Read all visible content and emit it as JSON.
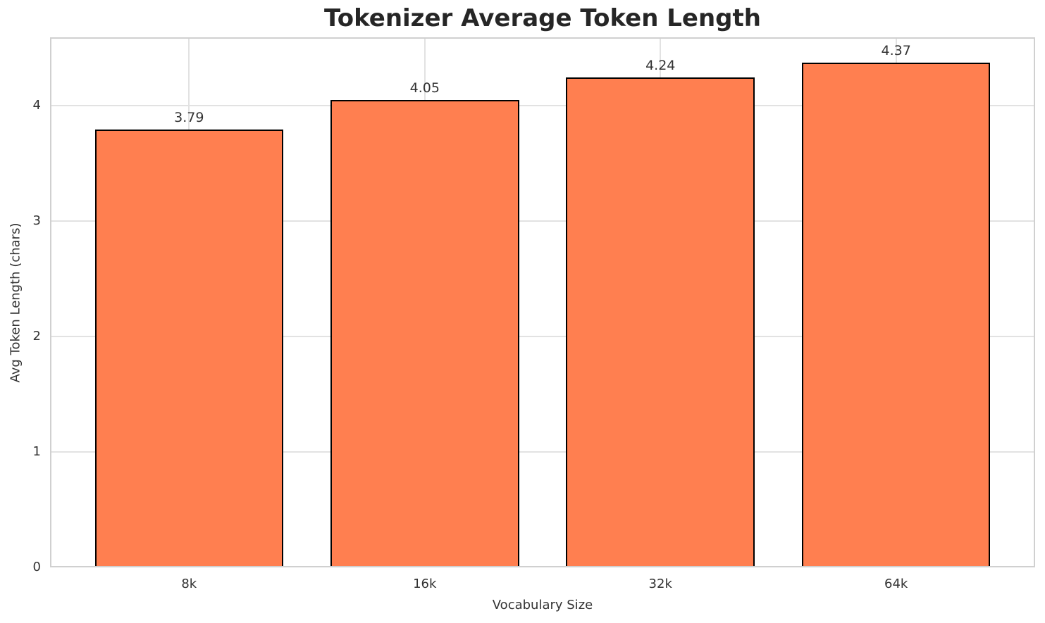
{
  "chart_data": {
    "type": "bar",
    "title": "Tokenizer Average Token Length",
    "xlabel": "Vocabulary Size",
    "ylabel": "Avg Token Length (chars)",
    "categories": [
      "8k",
      "16k",
      "32k",
      "64k"
    ],
    "values": [
      3.79,
      4.05,
      4.24,
      4.37
    ],
    "value_labels": [
      "3.79",
      "4.05",
      "4.24",
      "4.37"
    ],
    "ylim": [
      0,
      4.59
    ],
    "yticks": [
      0,
      1,
      2,
      3,
      4
    ],
    "grid": true,
    "legend_position": "none",
    "colors": {
      "bar_fill": "#FF7F50",
      "bar_edge": "#000000",
      "grid_line": "#e2e2e2",
      "spine": "#d0d0d0",
      "title_text": "#262626",
      "label_text": "#333333"
    }
  }
}
